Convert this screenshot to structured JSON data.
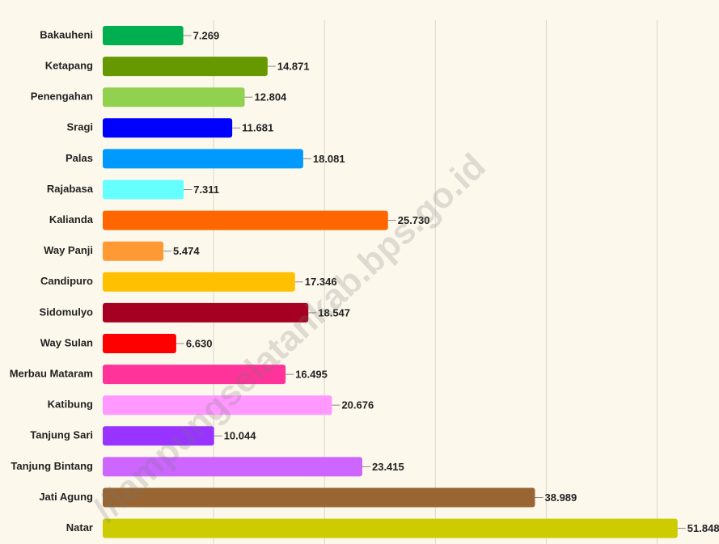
{
  "chart_data": {
    "type": "hbar",
    "categories": [
      "Bakauheni",
      "Ketapang",
      "Penengahan",
      "Sragi",
      "Palas",
      "Rajabasa",
      "Kalianda",
      "Way Panji",
      "Candipuro",
      "Sidomulyo",
      "Way Sulan",
      "Merbau Mataram",
      "Katibung",
      "Tanjung Sari",
      "Tanjung Bintang",
      "Jati Agung",
      "Natar"
    ],
    "values": [
      7269,
      14871,
      12804,
      11681,
      18081,
      7311,
      25730,
      5474,
      17346,
      18547,
      6630,
      16495,
      20676,
      10044,
      23415,
      38989,
      51848
    ],
    "value_labels": [
      "7.269",
      "14.871",
      "12.804",
      "11.681",
      "18.081",
      "7.311",
      "25.730",
      "5.474",
      "17.346",
      "18.547",
      "6.630",
      "16.495",
      "20.676",
      "10.044",
      "23.415",
      "38.989",
      "51.848"
    ],
    "colors": [
      "#00b050",
      "#669900",
      "#92d050",
      "#0000ff",
      "#0099ff",
      "#66ffff",
      "#ff6600",
      "#ff9933",
      "#ffc000",
      "#a50021",
      "#ff0000",
      "#ff3399",
      "#ff99ff",
      "#9933ff",
      "#cc66ff",
      "#996633",
      "#cccc00"
    ],
    "xlim": [
      0,
      55000
    ],
    "xticks": [
      10000,
      20000,
      30000,
      40000,
      50000
    ],
    "grid": true,
    "watermark": "//lampungselatankab.bps.go.id"
  }
}
